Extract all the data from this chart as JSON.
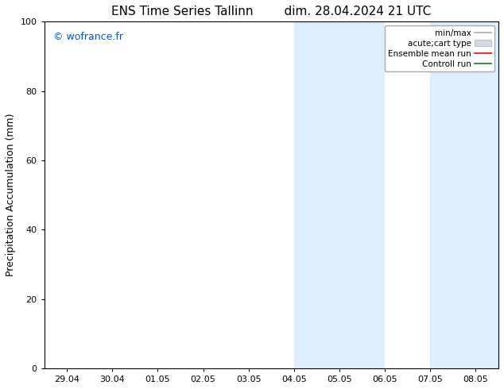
{
  "title": "ENS Time Series Tallinn        dim. 28.04.2024 21 UTC",
  "ylabel": "Precipitation Accumulation (mm)",
  "xlim_dates": [
    "29.04",
    "30.04",
    "01.05",
    "02.05",
    "03.05",
    "04.05",
    "05.05",
    "06.05",
    "07.05",
    "08.05"
  ],
  "ylim": [
    0,
    100
  ],
  "yticks": [
    0,
    20,
    40,
    60,
    80,
    100
  ],
  "shaded_regions": [
    {
      "xstart": 5.0,
      "xend": 6.0,
      "color": "#ddeeff"
    },
    {
      "xstart": 6.0,
      "xend": 7.0,
      "color": "#ddeeff"
    },
    {
      "xstart": 8.0,
      "xend": 9.0,
      "color": "#ddeeff"
    },
    {
      "xstart": 9.0,
      "xend": 9.5,
      "color": "#ddeeff"
    }
  ],
  "watermark": "© wofrance.fr",
  "watermark_color": "#0055cc",
  "legend_entries": [
    {
      "label": "min/max",
      "color": "#aaaaaa",
      "lw": 1.2,
      "ls": "-",
      "type": "line"
    },
    {
      "label": "acute;cart type",
      "color": "#d0dde8",
      "lw": 8,
      "ls": "-",
      "type": "patch"
    },
    {
      "label": "Ensemble mean run",
      "color": "red",
      "lw": 1.2,
      "ls": "-",
      "type": "line"
    },
    {
      "label": "Controll run",
      "color": "green",
      "lw": 1.2,
      "ls": "-",
      "type": "line"
    }
  ],
  "bg_color": "#ffffff",
  "plot_bg_color": "#ffffff",
  "tick_fontsize": 8,
  "label_fontsize": 9,
  "title_fontsize": 11,
  "xlim": [
    -0.5,
    9.5
  ]
}
